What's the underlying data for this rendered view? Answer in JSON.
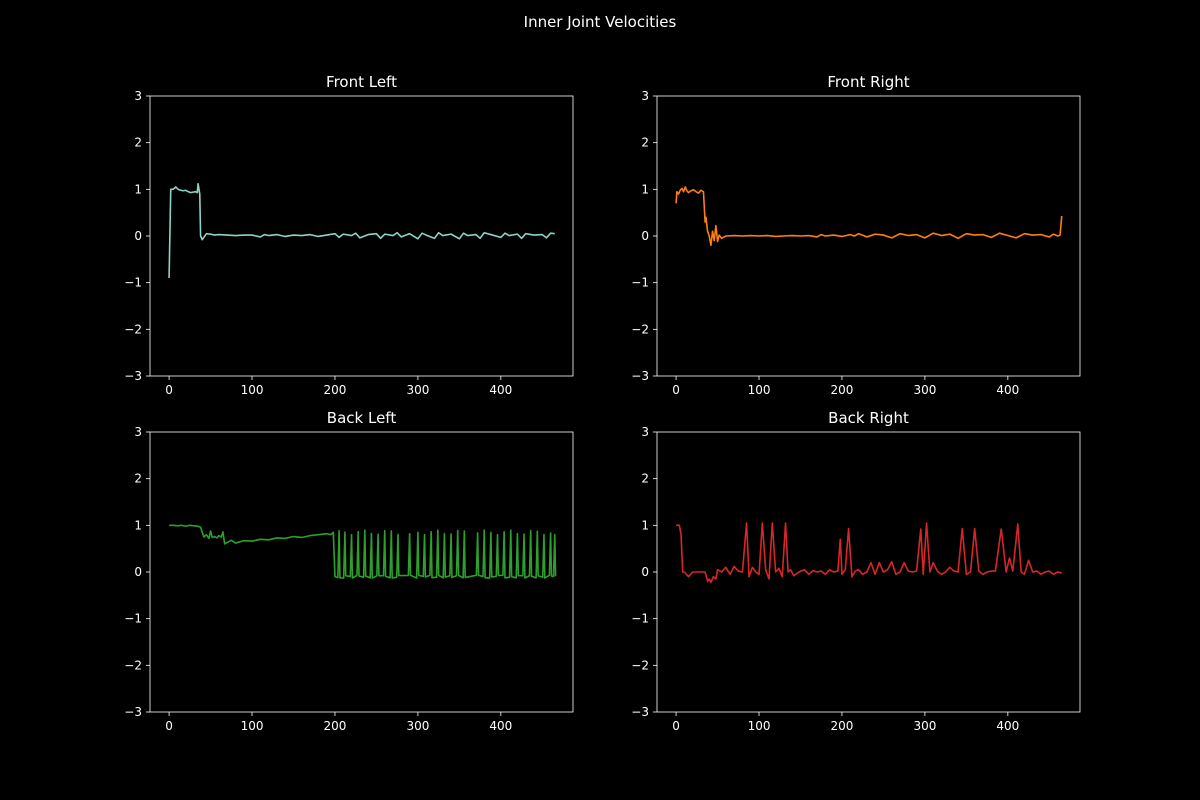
{
  "figure": {
    "title": "Inner Joint Velocities",
    "background": "#000000",
    "foreground": "#ffffff"
  },
  "chart_data": [
    {
      "type": "line",
      "title": "Front Left",
      "xlabel": "",
      "ylabel": "",
      "xlim": [
        -23,
        487
      ],
      "ylim": [
        -3,
        3
      ],
      "xticks": [
        0,
        100,
        200,
        300,
        400
      ],
      "yticks": [
        -3,
        -2,
        -1,
        0,
        1,
        2,
        3
      ],
      "grid": false,
      "color": "#8dd3c7",
      "series": [
        {
          "x": [
            0,
            2,
            5,
            8,
            11,
            14,
            17,
            20,
            23,
            26,
            29,
            32,
            34,
            35,
            37,
            38,
            40,
            45,
            50,
            55,
            60,
            70,
            80,
            90,
            100,
            110,
            115,
            120,
            130,
            140,
            150,
            160,
            170,
            180,
            190,
            200,
            205,
            210,
            220,
            225,
            230,
            240,
            250,
            255,
            260,
            270,
            275,
            280,
            290,
            300,
            305,
            310,
            320,
            325,
            330,
            340,
            350,
            355,
            360,
            370,
            375,
            380,
            390,
            400,
            405,
            410,
            420,
            425,
            430,
            440,
            450,
            455,
            460,
            465
          ],
          "y": [
            -0.9,
            1.0,
            1.0,
            1.05,
            1.0,
            0.98,
            0.97,
            0.98,
            0.95,
            0.93,
            0.94,
            0.95,
            0.93,
            1.12,
            0.9,
            0.0,
            -0.08,
            0.05,
            0.04,
            0.02,
            0.03,
            0.02,
            0.01,
            0.02,
            0.02,
            -0.02,
            0.03,
            0.01,
            0.03,
            -0.01,
            0.02,
            0.01,
            0.03,
            -0.01,
            0.02,
            0.05,
            -0.03,
            0.04,
            0.01,
            0.06,
            -0.04,
            0.03,
            0.05,
            -0.05,
            0.04,
            0.01,
            0.07,
            -0.02,
            0.05,
            -0.06,
            0.06,
            0.02,
            -0.05,
            0.07,
            0.01,
            0.04,
            -0.06,
            0.06,
            0.01,
            0.03,
            -0.05,
            0.07,
            0.02,
            -0.03,
            0.06,
            0.01,
            0.04,
            -0.05,
            0.05,
            0.02,
            0.03,
            -0.04,
            0.06,
            0.05
          ]
        }
      ]
    },
    {
      "type": "line",
      "title": "Front Right",
      "xlabel": "",
      "ylabel": "",
      "xlim": [
        -23,
        487
      ],
      "ylim": [
        -3,
        3
      ],
      "xticks": [
        0,
        100,
        200,
        300,
        400
      ],
      "yticks": [
        -3,
        -2,
        -1,
        0,
        1,
        2,
        3
      ],
      "grid": false,
      "color": "#ff7f0e",
      "series": [
        {
          "x": [
            0,
            1,
            3,
            5,
            7,
            9,
            11,
            13,
            15,
            18,
            21,
            24,
            27,
            30,
            33,
            35,
            36,
            38,
            40,
            42,
            44,
            46,
            48,
            50,
            52,
            55,
            60,
            70,
            80,
            90,
            100,
            110,
            120,
            130,
            140,
            150,
            160,
            170,
            175,
            180,
            190,
            200,
            210,
            215,
            220,
            230,
            240,
            250,
            260,
            270,
            280,
            290,
            300,
            310,
            320,
            330,
            340,
            350,
            360,
            370,
            380,
            390,
            400,
            410,
            420,
            430,
            440,
            450,
            455,
            460,
            463,
            465
          ],
          "y": [
            0.7,
            0.95,
            0.9,
            0.98,
            1.02,
            0.95,
            1.05,
            0.97,
            0.93,
            0.97,
            0.99,
            0.95,
            0.92,
            0.98,
            0.95,
            0.3,
            0.4,
            0.1,
            0.0,
            -0.2,
            0.1,
            -0.1,
            0.22,
            -0.12,
            0.02,
            -0.05,
            0.0,
            0.01,
            0.0,
            0.01,
            0.0,
            0.01,
            -0.01,
            0.0,
            0.01,
            0.0,
            0.01,
            -0.02,
            0.03,
            0.0,
            0.02,
            -0.01,
            0.03,
            0.0,
            0.05,
            -0.02,
            0.04,
            0.02,
            -0.04,
            0.05,
            0.01,
            0.03,
            -0.04,
            0.06,
            0.01,
            0.04,
            -0.05,
            0.05,
            0.02,
            0.03,
            -0.03,
            0.06,
            0.01,
            -0.04,
            0.05,
            0.02,
            0.03,
            -0.02,
            0.04,
            0.0,
            0.02,
            0.43
          ]
        }
      ]
    },
    {
      "type": "line",
      "title": "Back Left",
      "xlabel": "",
      "ylabel": "",
      "xlim": [
        -23,
        487
      ],
      "ylim": [
        -3,
        3
      ],
      "xticks": [
        0,
        100,
        200,
        300,
        400
      ],
      "yticks": [
        -3,
        -2,
        -1,
        0,
        1,
        2,
        3
      ],
      "grid": false,
      "color": "#2ca02c",
      "series": [
        {
          "x": [
            0,
            5,
            10,
            15,
            20,
            25,
            30,
            35,
            38,
            40,
            42,
            45,
            48,
            50,
            52,
            55,
            58,
            60,
            63,
            65,
            67,
            68,
            70,
            75,
            80,
            90,
            100,
            110,
            120,
            130,
            140,
            150,
            160,
            170,
            180,
            190,
            195,
            198
          ],
          "y": [
            1.0,
            1.0,
            0.99,
            1.0,
            0.98,
            1.0,
            0.99,
            0.98,
            0.96,
            0.85,
            0.75,
            0.8,
            0.72,
            0.88,
            0.74,
            0.76,
            0.73,
            0.78,
            0.75,
            0.86,
            0.6,
            0.62,
            0.63,
            0.68,
            0.62,
            0.67,
            0.66,
            0.7,
            0.69,
            0.73,
            0.72,
            0.76,
            0.74,
            0.78,
            0.8,
            0.82,
            0.8,
            0.85
          ]
        }
      ],
      "after_x200": {
        "baseline": -0.1,
        "spike_peak": 0.85,
        "spike_x": [
          205,
          212,
          220,
          228,
          236,
          244,
          252,
          260,
          268,
          276,
          290,
          300,
          308,
          316,
          324,
          332,
          340,
          348,
          356,
          372,
          380,
          388,
          396,
          404,
          412,
          420,
          428,
          436,
          444,
          452,
          460,
          465
        ]
      }
    },
    {
      "type": "line",
      "title": "Back Right",
      "xlabel": "",
      "ylabel": "",
      "xlim": [
        -23,
        487
      ],
      "ylim": [
        -3,
        3
      ],
      "xticks": [
        0,
        100,
        200,
        300,
        400
      ],
      "yticks": [
        -3,
        -2,
        -1,
        0,
        1,
        2,
        3
      ],
      "grid": false,
      "color": "#d62728",
      "series": [
        {
          "x": [
            0,
            4,
            6,
            8,
            10,
            15,
            20,
            25,
            30,
            35,
            38,
            40,
            42,
            45,
            48,
            50,
            55,
            60,
            65,
            70,
            75,
            80,
            85,
            88,
            92,
            96,
            100,
            104,
            108,
            112,
            116,
            120,
            124,
            128,
            132,
            135,
            138,
            142,
            148,
            155,
            160,
            165,
            170,
            175,
            180,
            185,
            190,
            195,
            198,
            200,
            204,
            208,
            212,
            216,
            220,
            225,
            230,
            235,
            240,
            245,
            250,
            255,
            260,
            265,
            270,
            275,
            280,
            285,
            290,
            295,
            298,
            302,
            306,
            310,
            315,
            320,
            325,
            330,
            335,
            340,
            345,
            350,
            355,
            360,
            365,
            370,
            375,
            380,
            385,
            392,
            398,
            402,
            406,
            412,
            416,
            420,
            425,
            430,
            435,
            440,
            445,
            450,
            455,
            460,
            465
          ],
          "y": [
            1.0,
            1.0,
            0.8,
            0.0,
            0.0,
            -0.1,
            0.0,
            0.0,
            0.0,
            0.0,
            -0.2,
            -0.15,
            -0.22,
            -0.1,
            -0.15,
            0.05,
            0.0,
            0.1,
            -0.05,
            0.12,
            0.02,
            0.0,
            1.05,
            -0.1,
            0.1,
            0.0,
            -0.05,
            1.05,
            0.05,
            -0.15,
            1.05,
            0.0,
            0.08,
            -0.1,
            1.05,
            0.0,
            0.05,
            -0.08,
            0.0,
            0.05,
            -0.05,
            0.03,
            0.0,
            0.02,
            -0.05,
            0.05,
            0.0,
            0.02,
            0.7,
            -0.05,
            0.05,
            0.93,
            -0.1,
            0.02,
            0.05,
            -0.05,
            0.0,
            0.2,
            -0.05,
            0.2,
            0.0,
            0.05,
            0.22,
            -0.05,
            0.0,
            0.2,
            0.02,
            0.0,
            0.02,
            0.92,
            -0.05,
            1.05,
            0.0,
            0.2,
            0.02,
            -0.05,
            0.0,
            0.1,
            0.02,
            0.0,
            0.93,
            -0.05,
            0.0,
            0.93,
            0.02,
            -0.05,
            0.0,
            0.02,
            0.02,
            0.92,
            0.0,
            0.3,
            0.02,
            1.03,
            0.0,
            -0.05,
            0.25,
            0.0,
            0.02,
            -0.05,
            0.0,
            0.02,
            -0.05,
            0.0,
            -0.02
          ]
        }
      ]
    }
  ]
}
